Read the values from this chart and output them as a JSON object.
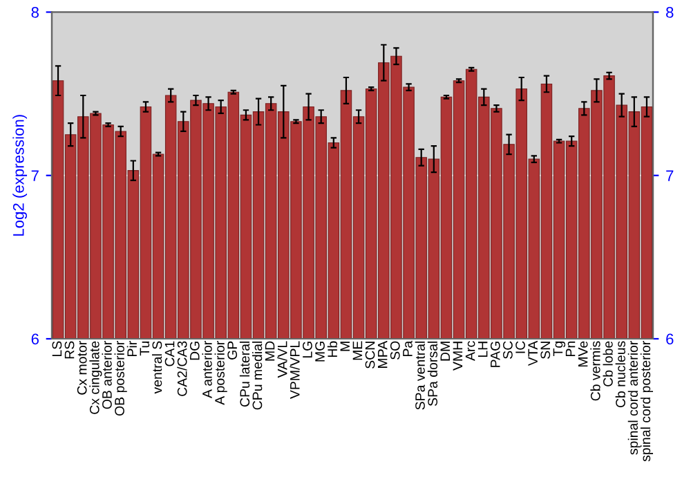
{
  "chart_data": {
    "type": "bar",
    "ylabel": "Log2 (expression)",
    "categories": [
      "LS",
      "RS",
      "Cx motor",
      "Cx cingulate",
      "OB anterior",
      "OB posterior",
      "Pir",
      "Tu",
      "ventral S",
      "CA1",
      "CA2/CA3",
      "DG",
      "A anterior",
      "A posterior",
      "GP",
      "CPu lateral",
      "CPu medial",
      "MD",
      "VA/VL",
      "VPM/VPL",
      "LG",
      "MG",
      "Hb",
      "M",
      "ME",
      "SCN",
      "MPA",
      "SO",
      "Pa",
      "SPa ventral",
      "SPa dorsal",
      "DM",
      "VMH",
      "Arc",
      "LH",
      "PAG",
      "SC",
      "IC",
      "VTA",
      "SN",
      "Tg",
      "Pn",
      "MVe",
      "Cb vermis",
      "Cb lobe",
      "Cb nucleus",
      "spinal cord anterior",
      "spinal cord posterior"
    ],
    "values": [
      7.58,
      7.25,
      7.36,
      7.38,
      7.31,
      7.27,
      7.03,
      7.42,
      7.13,
      7.49,
      7.33,
      7.46,
      7.44,
      7.42,
      7.51,
      7.37,
      7.39,
      7.44,
      7.39,
      7.33,
      7.42,
      7.36,
      7.2,
      7.52,
      7.36,
      7.53,
      7.69,
      7.73,
      7.54,
      7.11,
      7.1,
      7.48,
      7.58,
      7.65,
      7.48,
      7.41,
      7.19,
      7.53,
      7.1,
      7.56,
      7.21,
      7.21,
      7.41,
      7.52,
      7.61,
      7.43,
      7.39,
      7.42
    ],
    "errors": [
      0.09,
      0.07,
      0.13,
      0.01,
      0.01,
      0.03,
      0.06,
      0.03,
      0.01,
      0.04,
      0.06,
      0.03,
      0.04,
      0.04,
      0.01,
      0.03,
      0.08,
      0.04,
      0.16,
      0.01,
      0.08,
      0.04,
      0.03,
      0.08,
      0.04,
      0.01,
      0.11,
      0.05,
      0.02,
      0.05,
      0.08,
      0.01,
      0.01,
      0.01,
      0.05,
      0.02,
      0.06,
      0.07,
      0.02,
      0.05,
      0.01,
      0.03,
      0.04,
      0.07,
      0.02,
      0.07,
      0.09,
      0.06
    ],
    "color": "#b03535",
    "ylim": [
      6,
      8
    ],
    "yticks": [
      6,
      7,
      8
    ],
    "y2lim": [
      6,
      8
    ],
    "y2ticks": [
      6,
      7,
      8
    ],
    "grid": "y"
  }
}
